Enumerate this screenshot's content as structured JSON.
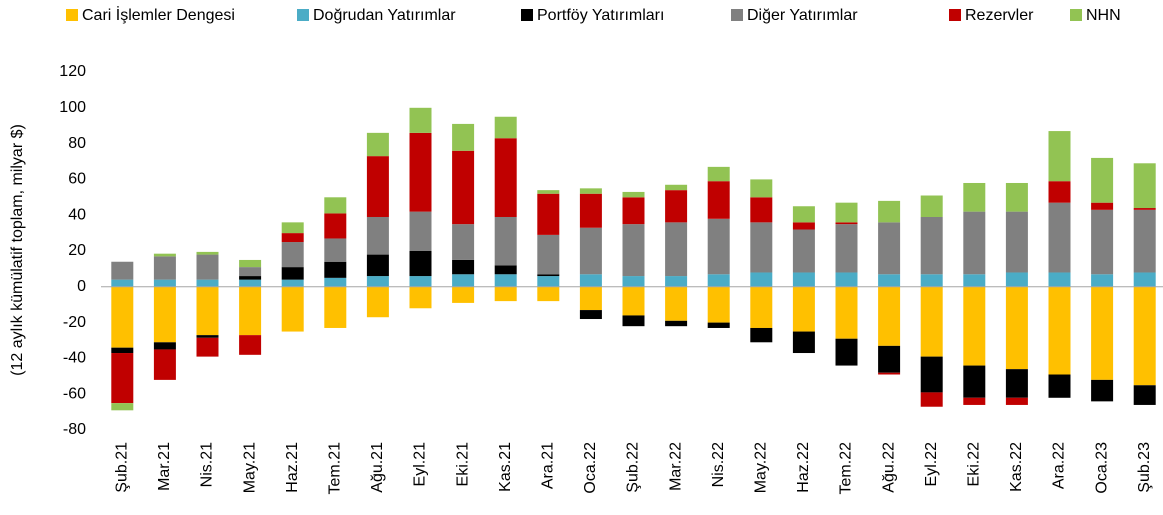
{
  "chart_data": {
    "type": "bar",
    "stacked": true,
    "y_label": "(12 aylık kümülatif toplam, milyar $)",
    "categories": [
      "Şub.21",
      "Mar.21",
      "Nis.21",
      "May.21",
      "Haz.21",
      "Tem.21",
      "Ağu.21",
      "Eyl.21",
      "Eki.21",
      "Kas.21",
      "Ara.21",
      "Oca.22",
      "Şub.22",
      "Mar.22",
      "Nis.22",
      "May.22",
      "Haz.22",
      "Tem.22",
      "Ağu.22",
      "Eyl.22",
      "Eki.22",
      "Kas.22",
      "Ara.22",
      "Oca.23",
      "Şub.23"
    ],
    "series": [
      {
        "name": "Cari İşlemler Dengesi",
        "color": "#ffc000",
        "values": [
          -34,
          -31,
          -27,
          -27,
          -25,
          -23,
          -17,
          -12,
          -9,
          -8,
          -8,
          -13,
          -16,
          -19,
          -20,
          -23,
          -25,
          -29,
          -33,
          -39,
          -44,
          -46,
          -49,
          -52,
          -55
        ]
      },
      {
        "name": "Doğrudan Yatırımlar",
        "color": "#4bacc6",
        "values": [
          4,
          4,
          4,
          4,
          4,
          5,
          6,
          6,
          7,
          7,
          6,
          7,
          6,
          6,
          7,
          8,
          8,
          8,
          7,
          7,
          7,
          8,
          8,
          7,
          8
        ]
      },
      {
        "name": "Portföy Yatırımları",
        "color": "#000000",
        "values": [
          -3,
          -4,
          -1.5,
          2,
          7,
          9,
          12,
          14,
          8,
          5,
          1,
          -5,
          -6,
          -3,
          -3,
          -8,
          -12,
          -15,
          -15,
          -20,
          -18,
          -16,
          -13,
          -12,
          -11
        ]
      },
      {
        "name": "Diğer Yatırımlar",
        "color": "#808080",
        "values": [
          10,
          13,
          14,
          5,
          14,
          13,
          21,
          22,
          20,
          27,
          22,
          26,
          29,
          30,
          31,
          28,
          24,
          27,
          29,
          32,
          35,
          34,
          39,
          36,
          35
        ]
      },
      {
        "name": "Rezervler",
        "color": "#c00000",
        "values": [
          -28,
          -17,
          -10.5,
          -11,
          5,
          14,
          34,
          44,
          41,
          44,
          23,
          19,
          15,
          18,
          21,
          14,
          4,
          1,
          -1,
          -8,
          -4,
          -4,
          12,
          4,
          1
        ]
      },
      {
        "name": "NHN",
        "color": "#92c353",
        "values": [
          -4,
          1.5,
          1.5,
          4,
          6,
          9,
          13,
          14,
          15,
          12,
          2,
          3,
          3,
          3,
          8,
          10,
          9,
          11,
          12,
          12,
          16,
          16,
          28,
          25,
          25
        ]
      }
    ],
    "ylim": [
      -80,
      120
    ],
    "yticks": [
      -80,
      -60,
      -40,
      -20,
      0,
      20,
      40,
      60,
      80,
      100,
      120
    ],
    "grid": false,
    "legend": "top"
  }
}
